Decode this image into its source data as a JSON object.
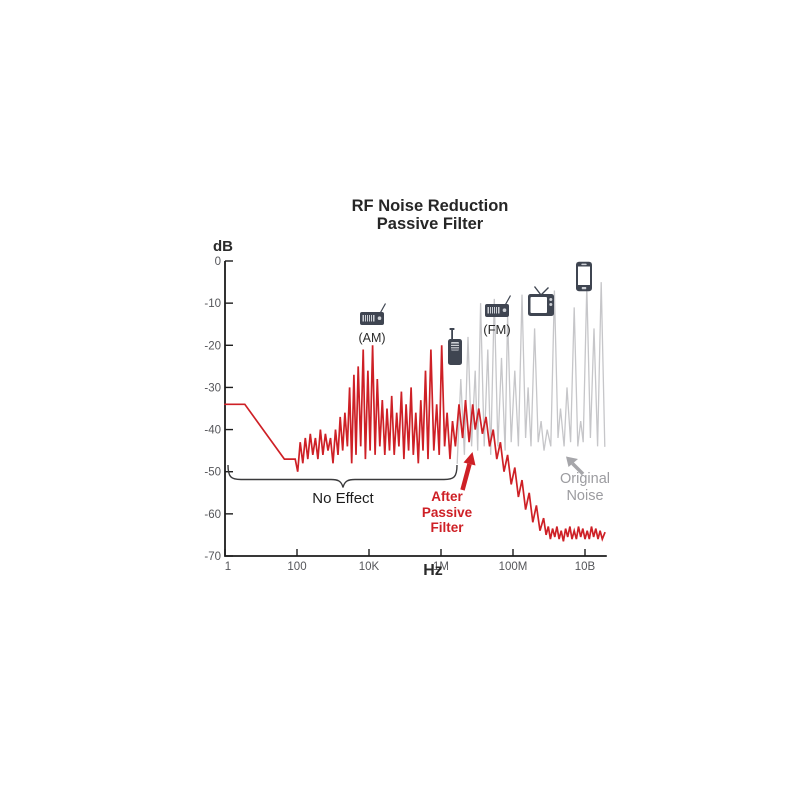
{
  "figure": {
    "title_line1": "RF Noise Reduction",
    "title_line2": "Passive Filter"
  },
  "axes": {
    "y_label": "dB",
    "x_label": "Hz"
  },
  "annotations": {
    "no_effect": "No Effect",
    "after_filter": [
      "After",
      "Passive",
      "Filter"
    ],
    "original_noise": [
      "Original",
      "Noise"
    ],
    "am_label": "(AM)",
    "fm_label": "(FM)"
  },
  "icons": [
    "radio-am-icon",
    "walkie-talkie-icon",
    "radio-fm-icon",
    "tv-icon",
    "smartphone-icon"
  ],
  "colors": {
    "filtered_line": "#ce2026",
    "original_line": "#c6c6c9",
    "icon": "#3f4551",
    "icon_detail": "#cdd0d5",
    "axis": "#1c1c1c",
    "tick_text": "#55565a",
    "annotation_gray": "#9c9ca0",
    "arrow_gray": "#a6a6aa",
    "text_dark": "#262626"
  },
  "chart_data": {
    "type": "line",
    "title": "RF Noise Reduction Passive Filter",
    "xlabel": "Hz",
    "ylabel": "dB",
    "x_axis": {
      "scale": "log10_decades",
      "tick_labels": [
        "1",
        "100",
        "10K",
        "1M",
        "100M",
        "10B"
      ],
      "tick_decades": [
        0,
        2,
        4,
        6,
        8,
        10
      ],
      "range_decades": [
        0,
        10.55
      ]
    },
    "y_axis": {
      "tick_values": [
        0,
        -10,
        -20,
        -30,
        -40,
        -50,
        -60,
        -70
      ],
      "range": [
        -70,
        0
      ]
    },
    "grid": false,
    "legend_position": "annotated-arrows",
    "series": [
      {
        "name": "Original Noise",
        "color": "#c6c6c9",
        "points": [
          [
            6.45,
            -48
          ],
          [
            6.55,
            -28
          ],
          [
            6.65,
            -46
          ],
          [
            6.75,
            -18
          ],
          [
            6.85,
            -44
          ],
          [
            6.95,
            -26
          ],
          [
            7.02,
            -45
          ],
          [
            7.1,
            -10
          ],
          [
            7.2,
            -44
          ],
          [
            7.3,
            -21
          ],
          [
            7.38,
            -46
          ],
          [
            7.48,
            -9
          ],
          [
            7.58,
            -44
          ],
          [
            7.68,
            -23
          ],
          [
            7.78,
            -45
          ],
          [
            7.85,
            -13
          ],
          [
            7.95,
            -43
          ],
          [
            8.05,
            -26
          ],
          [
            8.15,
            -44
          ],
          [
            8.25,
            -8
          ],
          [
            8.35,
            -42
          ],
          [
            8.42,
            -30
          ],
          [
            8.5,
            -44
          ],
          [
            8.6,
            -16
          ],
          [
            8.7,
            -43
          ],
          [
            8.78,
            -38
          ],
          [
            8.86,
            -45
          ],
          [
            8.95,
            -40
          ],
          [
            9.05,
            -44
          ],
          [
            9.15,
            -7
          ],
          [
            9.25,
            -42
          ],
          [
            9.32,
            -35
          ],
          [
            9.42,
            -44
          ],
          [
            9.5,
            -30
          ],
          [
            9.6,
            -43
          ],
          [
            9.7,
            -11
          ],
          [
            9.8,
            -44
          ],
          [
            9.88,
            -38
          ],
          [
            9.95,
            -43
          ],
          [
            10.05,
            -6
          ],
          [
            10.15,
            -42
          ],
          [
            10.25,
            -16
          ],
          [
            10.35,
            -44
          ],
          [
            10.45,
            -5
          ],
          [
            10.55,
            -44
          ]
        ]
      },
      {
        "name": "After Passive Filter",
        "color": "#ce2026",
        "points": [
          [
            0,
            -34
          ],
          [
            0.55,
            -34
          ],
          [
            1.65,
            -47
          ],
          [
            1.95,
            -47
          ],
          [
            2.02,
            -50
          ],
          [
            2.09,
            -43
          ],
          [
            2.16,
            -48
          ],
          [
            2.23,
            -42
          ],
          [
            2.3,
            -47
          ],
          [
            2.37,
            -41
          ],
          [
            2.44,
            -46
          ],
          [
            2.51,
            -42
          ],
          [
            2.58,
            -47
          ],
          [
            2.65,
            -40
          ],
          [
            2.72,
            -46
          ],
          [
            2.79,
            -41
          ],
          [
            2.86,
            -45
          ],
          [
            2.93,
            -42
          ],
          [
            3.0,
            -48
          ],
          [
            3.07,
            -40
          ],
          [
            3.14,
            -46
          ],
          [
            3.2,
            -37
          ],
          [
            3.27,
            -45
          ],
          [
            3.33,
            -36
          ],
          [
            3.4,
            -44
          ],
          [
            3.46,
            -30
          ],
          [
            3.52,
            -48
          ],
          [
            3.58,
            -27
          ],
          [
            3.64,
            -46
          ],
          [
            3.7,
            -25
          ],
          [
            3.77,
            -44
          ],
          [
            3.84,
            -21
          ],
          [
            3.9,
            -47
          ],
          [
            3.97,
            -26
          ],
          [
            4.03,
            -45
          ],
          [
            4.1,
            -20
          ],
          [
            4.17,
            -46
          ],
          [
            4.23,
            -28
          ],
          [
            4.3,
            -44
          ],
          [
            4.37,
            -33
          ],
          [
            4.44,
            -46
          ],
          [
            4.5,
            -35
          ],
          [
            4.57,
            -45
          ],
          [
            4.63,
            -32
          ],
          [
            4.7,
            -46
          ],
          [
            4.77,
            -36
          ],
          [
            4.83,
            -44
          ],
          [
            4.9,
            -31
          ],
          [
            4.97,
            -47
          ],
          [
            5.03,
            -34
          ],
          [
            5.1,
            -45
          ],
          [
            5.17,
            -30
          ],
          [
            5.23,
            -46
          ],
          [
            5.3,
            -36
          ],
          [
            5.37,
            -48
          ],
          [
            5.44,
            -33
          ],
          [
            5.5,
            -45
          ],
          [
            5.57,
            -26
          ],
          [
            5.64,
            -47
          ],
          [
            5.72,
            -21
          ],
          [
            5.8,
            -45
          ],
          [
            5.88,
            -34
          ],
          [
            5.95,
            -46
          ],
          [
            6.02,
            -20
          ],
          [
            6.1,
            -44
          ],
          [
            6.17,
            -36
          ],
          [
            6.25,
            -47
          ],
          [
            6.32,
            -38
          ],
          [
            6.4,
            -44
          ],
          [
            6.5,
            -34
          ],
          [
            6.6,
            -42
          ],
          [
            6.68,
            -33
          ],
          [
            6.78,
            -43
          ],
          [
            6.88,
            -34
          ],
          [
            6.95,
            -40
          ],
          [
            7.05,
            -35
          ],
          [
            7.15,
            -41
          ],
          [
            7.25,
            -37
          ],
          [
            7.35,
            -44
          ],
          [
            7.45,
            -40
          ],
          [
            7.55,
            -47
          ],
          [
            7.65,
            -43
          ],
          [
            7.75,
            -50
          ],
          [
            7.85,
            -46
          ],
          [
            7.95,
            -53
          ],
          [
            8.05,
            -49
          ],
          [
            8.15,
            -56
          ],
          [
            8.25,
            -52
          ],
          [
            8.35,
            -59
          ],
          [
            8.45,
            -55
          ],
          [
            8.55,
            -62
          ],
          [
            8.65,
            -58
          ],
          [
            8.75,
            -64
          ],
          [
            8.85,
            -61
          ],
          [
            8.92,
            -65
          ],
          [
            8.98,
            -63
          ],
          [
            9.04,
            -66
          ],
          [
            9.1,
            -63.5
          ],
          [
            9.16,
            -65.5
          ],
          [
            9.22,
            -63
          ],
          [
            9.28,
            -66
          ],
          [
            9.34,
            -64
          ],
          [
            9.4,
            -66.5
          ],
          [
            9.46,
            -63.5
          ],
          [
            9.52,
            -65.5
          ],
          [
            9.58,
            -63
          ],
          [
            9.64,
            -66
          ],
          [
            9.7,
            -64
          ],
          [
            9.76,
            -66
          ],
          [
            9.82,
            -63
          ],
          [
            9.88,
            -65.5
          ],
          [
            9.94,
            -63.5
          ],
          [
            10.0,
            -66
          ],
          [
            10.06,
            -64
          ],
          [
            10.12,
            -66
          ],
          [
            10.18,
            -63
          ],
          [
            10.24,
            -65.5
          ],
          [
            10.3,
            -63.5
          ],
          [
            10.36,
            -66
          ],
          [
            10.42,
            -64
          ],
          [
            10.48,
            -66
          ],
          [
            10.55,
            -64.5
          ]
        ]
      }
    ]
  }
}
